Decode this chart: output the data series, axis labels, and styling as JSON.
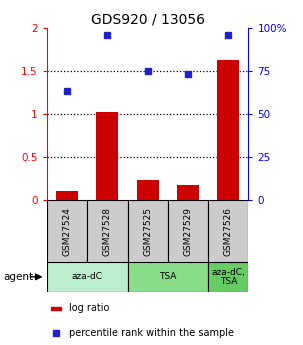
{
  "title": "GDS920 / 13056",
  "samples": [
    "GSM27524",
    "GSM27528",
    "GSM27525",
    "GSM27529",
    "GSM27526"
  ],
  "bar_values": [
    0.11,
    1.02,
    0.23,
    0.18,
    1.62
  ],
  "blue_values": [
    1.27,
    1.91,
    1.5,
    1.46,
    1.91
  ],
  "bar_color": "#cc0000",
  "blue_color": "#2222cc",
  "ylim_left": [
    0,
    2
  ],
  "ylim_right": [
    0,
    100
  ],
  "yticks_left": [
    0,
    0.5,
    1.0,
    1.5,
    2.0
  ],
  "yticks_right": [
    0,
    25,
    50,
    75,
    100
  ],
  "ytick_labels_left": [
    "0",
    "0.5",
    "1",
    "1.5",
    "2"
  ],
  "ytick_labels_right": [
    "0",
    "25",
    "50",
    "75",
    "100%"
  ],
  "hlines": [
    0.5,
    1.0,
    1.5
  ],
  "agent_group_info": [
    {
      "start": 0,
      "end": 1,
      "label": "aza-dC",
      "color": "#bbeecc"
    },
    {
      "start": 2,
      "end": 3,
      "label": "TSA",
      "color": "#88dd88"
    },
    {
      "start": 4,
      "end": 4,
      "label": "aza-dC,\nTSA",
      "color": "#66cc66"
    }
  ],
  "bar_width": 0.55,
  "background_color": "#ffffff",
  "legend_log_ratio": "log ratio",
  "legend_percentile": "percentile rank within the sample"
}
